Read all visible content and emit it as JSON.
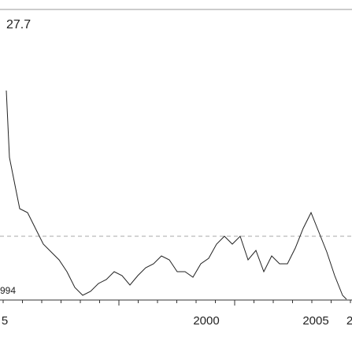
{
  "chart_data": {
    "type": "line",
    "annotations": [
      "27.7",
      "994"
    ],
    "x_labels": [
      "5",
      "2000",
      "2005",
      "2"
    ],
    "xlim": [
      0,
      447
    ],
    "ylim": [
      0,
      105
    ],
    "ref_line": 30,
    "color": "#222222",
    "x": [
      8,
      12,
      20,
      25,
      35,
      45,
      55,
      65,
      75,
      85,
      95,
      105,
      115,
      125,
      135,
      145,
      155,
      165,
      175,
      185,
      195,
      205,
      215,
      225,
      235,
      245,
      255,
      265,
      275,
      285,
      295,
      305,
      315,
      325,
      335,
      345,
      355,
      365,
      375,
      385,
      395,
      405,
      415,
      425,
      435,
      440
    ],
    "values": [
      76.25,
      55,
      45,
      38.75,
      37.5,
      32.5,
      27.5,
      25,
      22.5,
      18.75,
      13.75,
      11.25,
      12.5,
      15,
      16.25,
      18.75,
      17.5,
      14.5,
      17.5,
      20,
      21.25,
      23.75,
      22.5,
      18.75,
      18.75,
      17,
      21.25,
      23,
      27.5,
      30,
      27.5,
      30,
      22.5,
      25.5,
      18.75,
      23.75,
      21.25,
      21.25,
      26.25,
      32.5,
      37.5,
      31.25,
      25,
      17.5,
      11.25,
      10
    ]
  }
}
